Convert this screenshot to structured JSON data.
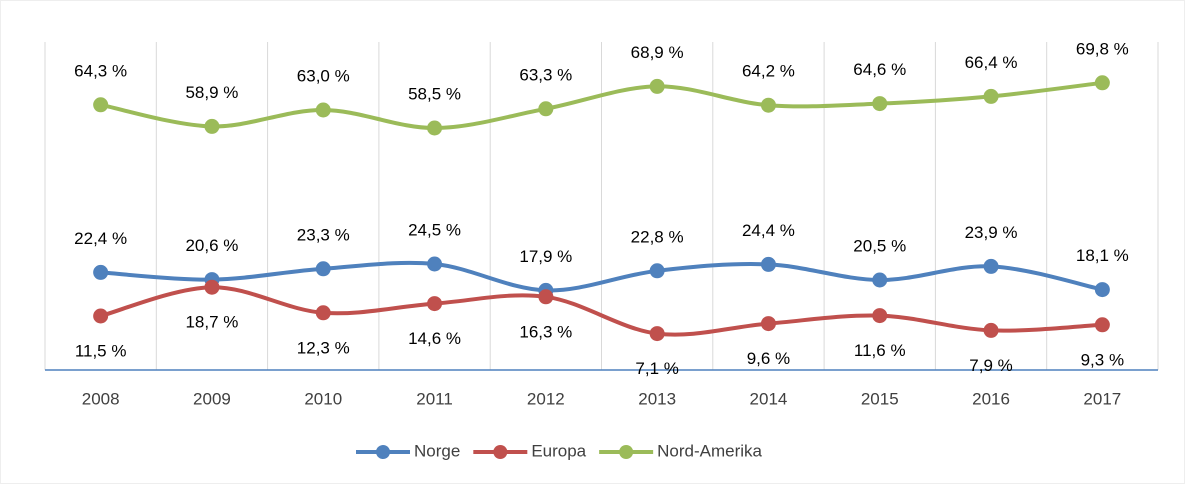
{
  "chart_data": {
    "type": "line",
    "categories": [
      "2008",
      "2009",
      "2010",
      "2011",
      "2012",
      "2013",
      "2014",
      "2015",
      "2016",
      "2017"
    ],
    "ylim": [
      -2,
      80
    ],
    "legend": "bottom",
    "smooth": true,
    "series": [
      {
        "name": "Norge",
        "color": "#4f81bd",
        "label_position": "above",
        "values": [
          22.4,
          20.6,
          23.3,
          24.5,
          17.9,
          22.8,
          24.4,
          20.5,
          23.9,
          18.1
        ],
        "value_labels": [
          "22,4 %",
          "20,6 %",
          "23,3 %",
          "24,5 %",
          "17,9 %",
          "22,8 %",
          "24,4 %",
          "20,5 %",
          "23,9 %",
          "18,1 %"
        ]
      },
      {
        "name": "Europa",
        "color": "#c0504d",
        "label_position": "below",
        "values": [
          11.5,
          18.7,
          12.3,
          14.6,
          16.3,
          7.1,
          9.6,
          11.6,
          7.9,
          9.3
        ],
        "value_labels": [
          "11,5 %",
          "18,7 %",
          "12,3 %",
          "14,6 %",
          "16,3 %",
          "7,1 %",
          "9,6 %",
          "11,6 %",
          "7,9 %",
          "9,3 %"
        ]
      },
      {
        "name": "Nord-Amerika",
        "color": "#9bbb59",
        "label_position": "above",
        "values": [
          64.3,
          58.9,
          63.0,
          58.5,
          63.3,
          68.9,
          64.2,
          64.6,
          66.4,
          69.8
        ],
        "value_labels": [
          "64,3 %",
          "58,9 %",
          "63,0 %",
          "58,5 %",
          "63,3 %",
          "68,9 %",
          "64,2 %",
          "64,6 %",
          "66,4 %",
          "69,8 %"
        ]
      }
    ]
  }
}
